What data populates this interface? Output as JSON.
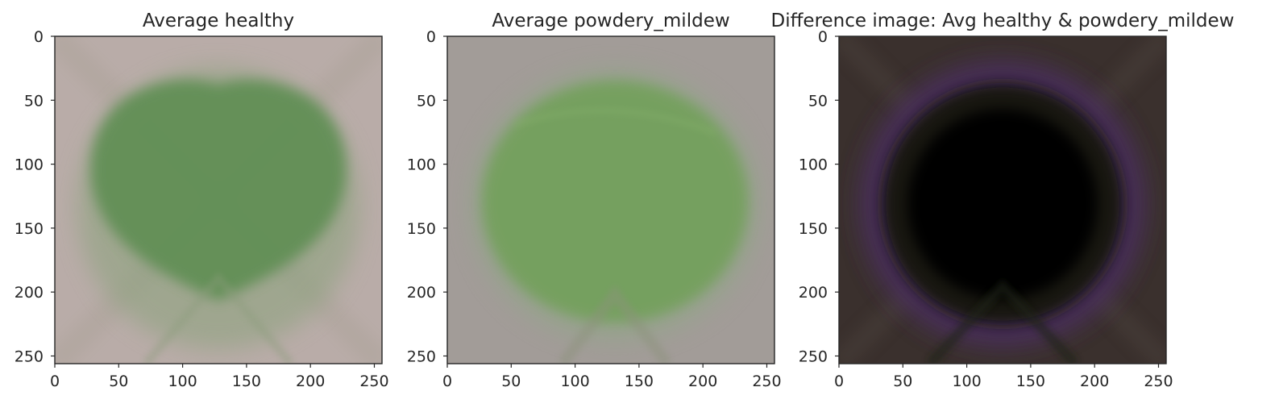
{
  "chart_data": [
    {
      "type": "image",
      "title": "Average healthy",
      "xlim": [
        0,
        256
      ],
      "ylim": [
        256,
        0
      ],
      "x_ticks": [
        0,
        50,
        100,
        150,
        200,
        250
      ],
      "y_ticks": [
        0,
        50,
        100,
        150,
        200,
        250
      ],
      "grid": false,
      "background_color": "#b9aca8",
      "content_color": "#5e8e52",
      "content_shape": "heart-shaped leaf, centered, filling most of the frame"
    },
    {
      "type": "image",
      "title": "Average powdery_mildew",
      "xlim": [
        0,
        256
      ],
      "ylim": [
        256,
        0
      ],
      "x_ticks": [
        0,
        50,
        100,
        150,
        200,
        250
      ],
      "y_ticks": [
        0,
        50,
        100,
        150,
        200,
        250
      ],
      "grid": false,
      "background_color": "#a29c98",
      "content_color": "#73a05b",
      "content_shape": "round blurred leaf, centered"
    },
    {
      "type": "image",
      "title": "Difference image: Avg healthy & powdery_mildew",
      "xlim": [
        0,
        256
      ],
      "ylim": [
        256,
        0
      ],
      "x_ticks": [
        0,
        50,
        100,
        150,
        200,
        250
      ],
      "y_ticks": [
        0,
        50,
        100,
        150,
        200,
        250
      ],
      "grid": false,
      "background_color": "#3a302d",
      "content_color": "#050505",
      "ring_color": "#4a2f5c",
      "content_shape": "dark circle with purple-tinted rim"
    }
  ]
}
